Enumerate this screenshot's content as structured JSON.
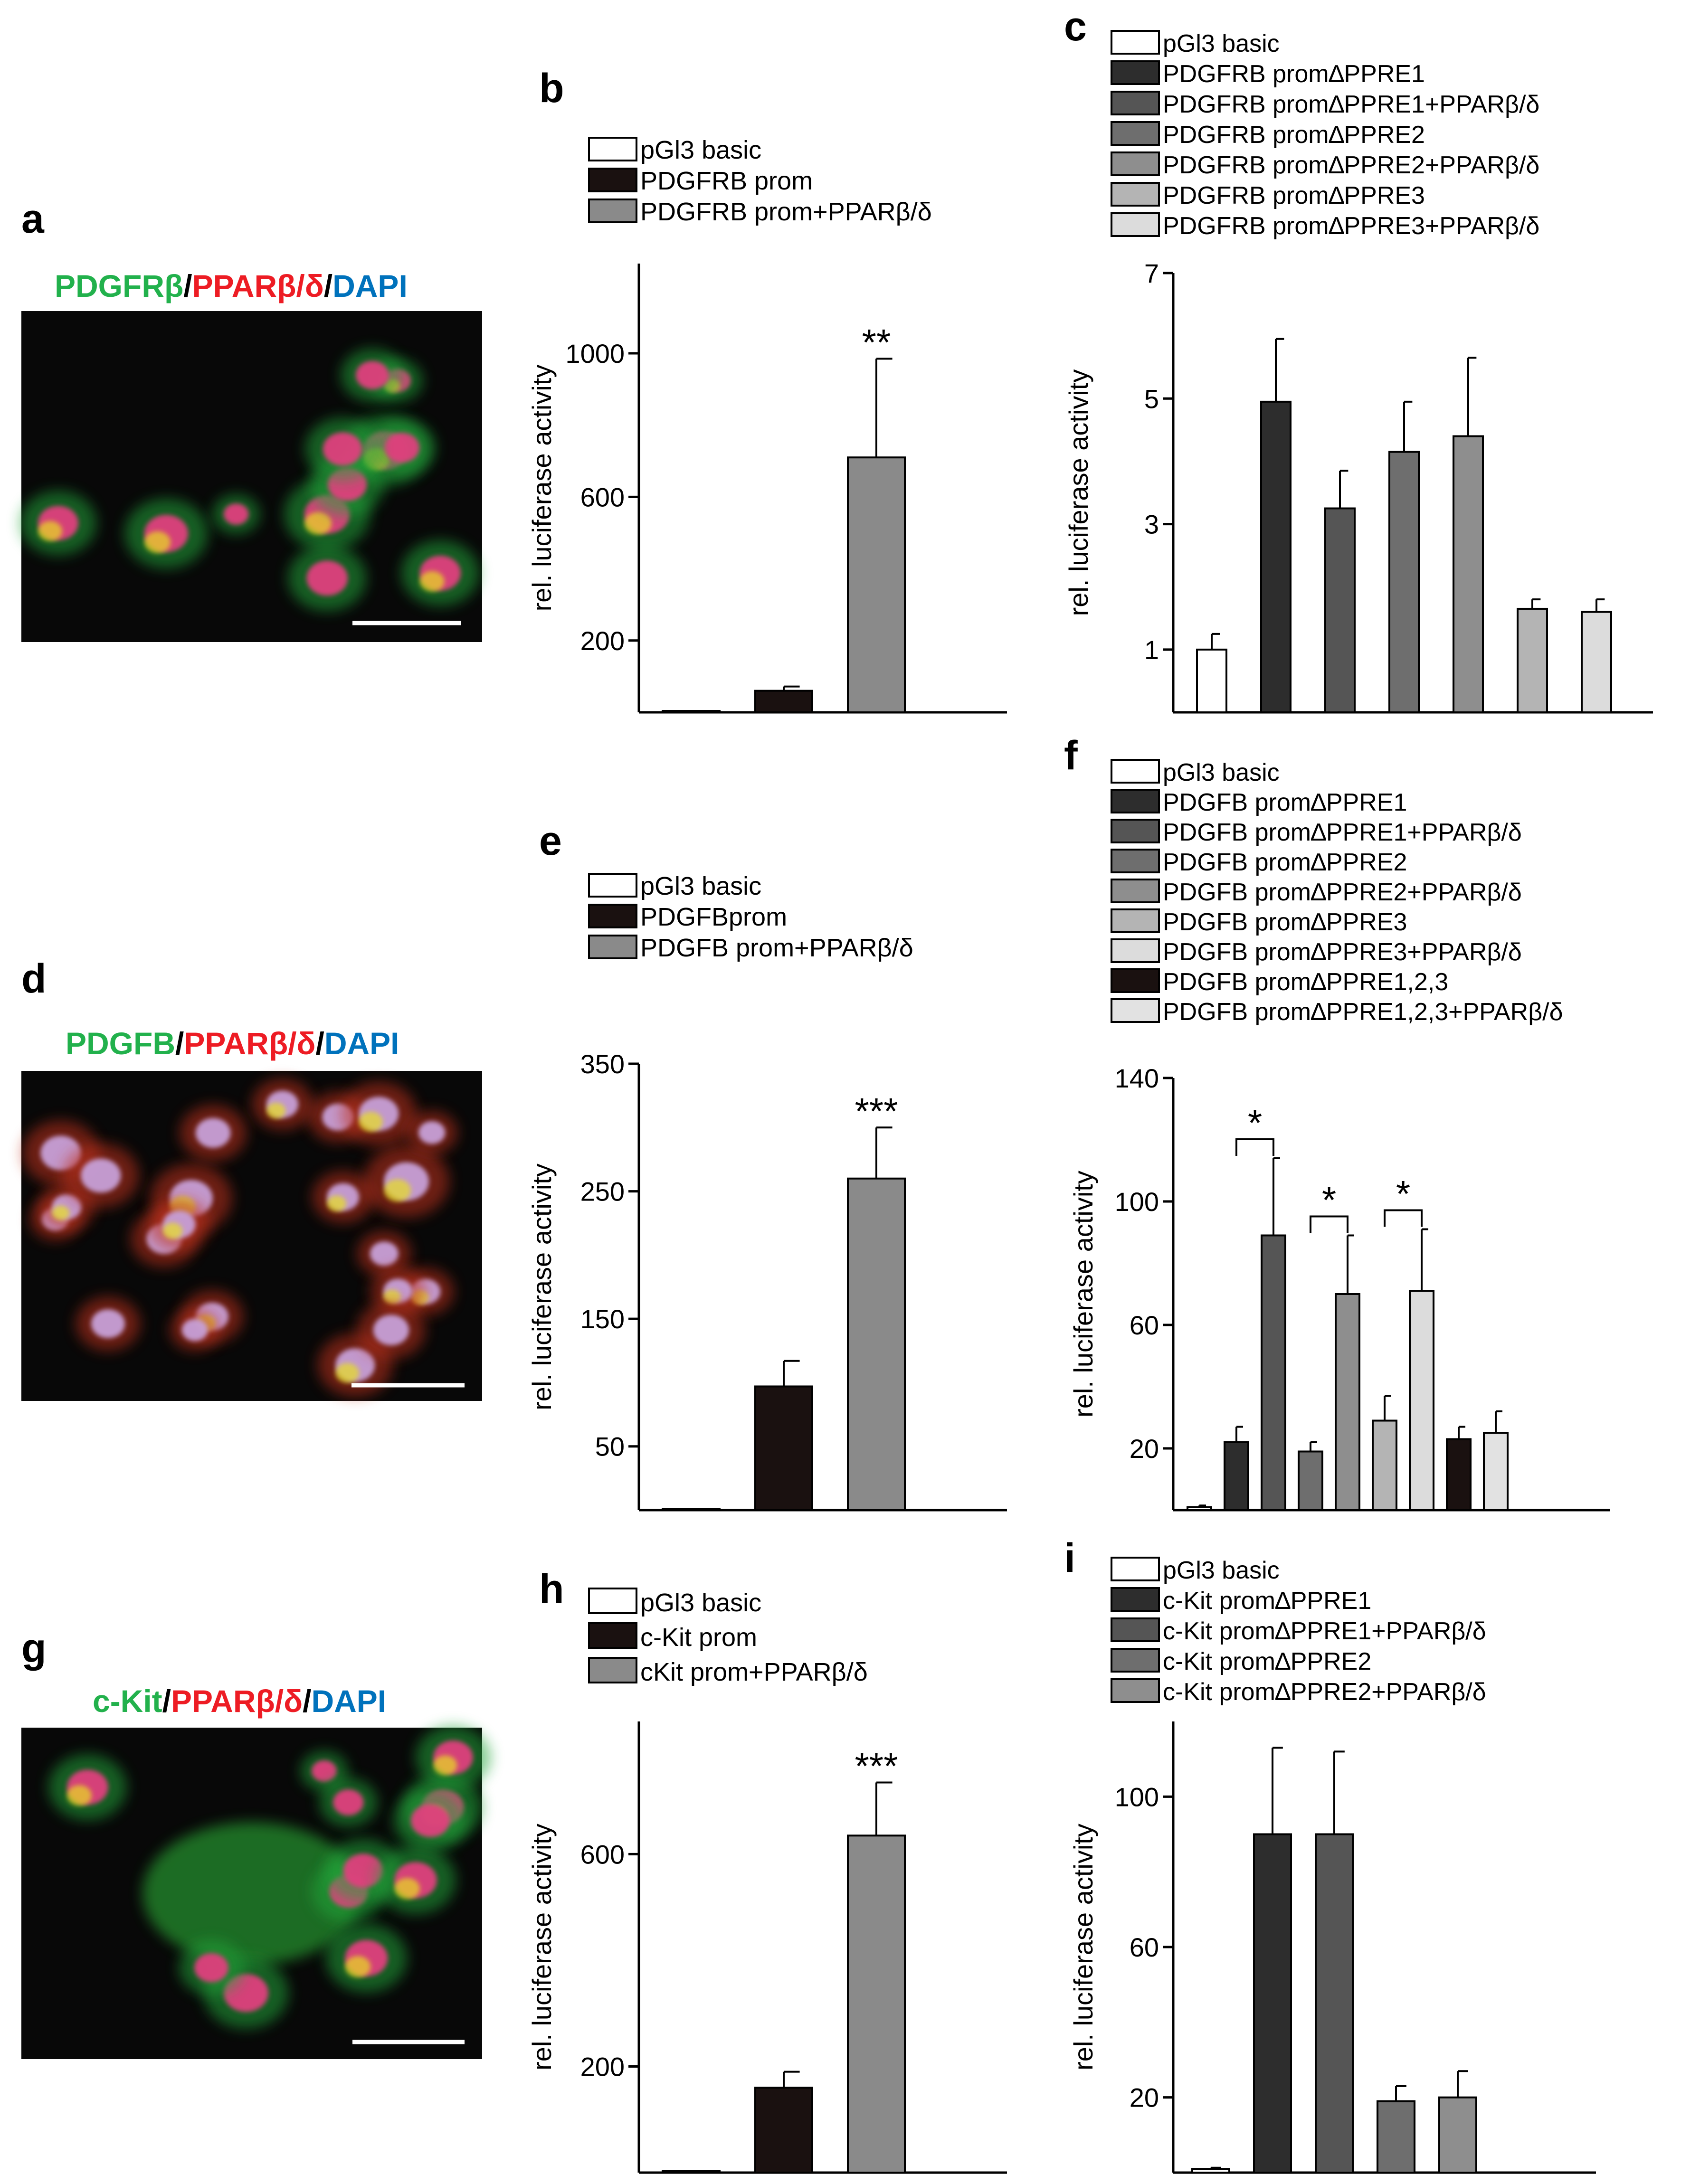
{
  "panel_letters": [
    "a",
    "b",
    "c",
    "d",
    "e",
    "f",
    "g",
    "h",
    "i"
  ],
  "micro": [
    {
      "letter": "a",
      "title": [
        [
          "PDGFRβ",
          "#22b14c"
        ],
        [
          "/",
          "#000000"
        ],
        [
          "PPARβ/δ",
          "#ed1c24"
        ],
        [
          "/",
          "#000000"
        ],
        [
          "DAPI",
          "#0072bc"
        ]
      ]
    },
    {
      "letter": "d",
      "title": [
        [
          "PDGFB",
          "#22b14c"
        ],
        [
          "/",
          "#000000"
        ],
        [
          "PPARβ/δ",
          "#ed1c24"
        ],
        [
          "/",
          "#000000"
        ],
        [
          "DAPI",
          "#0072bc"
        ]
      ]
    },
    {
      "letter": "g",
      "title": [
        [
          "c-Kit",
          "#22b14c"
        ],
        [
          "/",
          "#000000"
        ],
        [
          "PPARβ/δ",
          "#ed1c24"
        ],
        [
          "/",
          "#000000"
        ],
        [
          "DAPI",
          "#0072bc"
        ]
      ]
    }
  ],
  "chart_data": [
    {
      "panel": "b",
      "type": "bar",
      "ylabel": "rel. luciferase activity",
      "ylim": [
        0,
        1250
      ],
      "yticks": [
        200,
        600,
        1000
      ],
      "series": [
        {
          "name": "pGl3 basic",
          "value": 1,
          "error": 0,
          "color": "#ffffff"
        },
        {
          "name": "PDGFRB prom",
          "value": 60,
          "error": 12,
          "color": "#1a1110"
        },
        {
          "name": "PDGFRB prom+PPARβ/δ",
          "value": 710,
          "error": 275,
          "color": "#8a8a8a"
        }
      ],
      "annotations": [
        {
          "bar": 2,
          "text": "**"
        }
      ]
    },
    {
      "panel": "c",
      "type": "bar",
      "ylabel": "rel. luciferase activity",
      "ylim": [
        0,
        7
      ],
      "yticks": [
        1,
        3,
        5,
        7
      ],
      "series": [
        {
          "name": "pGl3 basic",
          "value": 1.0,
          "error": 0.25,
          "color": "#ffffff"
        },
        {
          "name": "PDGFRB prom∆PPRE1",
          "value": 4.95,
          "error": 1.0,
          "color": "#2d2d2d"
        },
        {
          "name": "PDGFRB prom∆PPRE1+PPARβ/δ",
          "value": 3.25,
          "error": 0.6,
          "color": "#555555"
        },
        {
          "name": "PDGFRB prom∆PPRE2",
          "value": 4.15,
          "error": 0.8,
          "color": "#6e6e6e"
        },
        {
          "name": "PDGFRB prom∆PPRE2+PPARβ/δ",
          "value": 4.4,
          "error": 1.25,
          "color": "#8e8e8e"
        },
        {
          "name": "PDGFRB prom∆PPRE3",
          "value": 1.65,
          "error": 0.15,
          "color": "#b4b4b4"
        },
        {
          "name": "PDGFRB prom∆PPRE3+PPARβ/δ",
          "value": 1.6,
          "error": 0.2,
          "color": "#dcdcdc"
        }
      ],
      "annotations": []
    },
    {
      "panel": "e",
      "type": "bar",
      "ylabel": "rel. luciferase activity",
      "ylim": [
        0,
        350
      ],
      "yticks": [
        50,
        150,
        250,
        350
      ],
      "series": [
        {
          "name": "pGl3 basic",
          "value": 1,
          "error": 0,
          "color": "#ffffff"
        },
        {
          "name": "PDGFBprom",
          "value": 97,
          "error": 20,
          "color": "#1a1110"
        },
        {
          "name": "PDGFB prom+PPARβ/δ",
          "value": 260,
          "error": 40,
          "color": "#8a8a8a"
        }
      ],
      "annotations": [
        {
          "bar": 2,
          "text": "***"
        }
      ]
    },
    {
      "panel": "f",
      "type": "bar",
      "ylabel": "rel. luciferase activity",
      "ylim": [
        0,
        140
      ],
      "yticks": [
        20,
        60,
        100,
        140
      ],
      "series": [
        {
          "name": "pGl3 basic",
          "value": 1,
          "error": 0.5,
          "color": "#ffffff"
        },
        {
          "name": "PDGFB prom∆PPRE1",
          "value": 22,
          "error": 5,
          "color": "#2d2d2d"
        },
        {
          "name": "PDGFB prom∆PPRE1+PPARβ/δ",
          "value": 89,
          "error": 25,
          "color": "#555555"
        },
        {
          "name": "PDGFB prom∆PPRE2",
          "value": 19,
          "error": 3,
          "color": "#6e6e6e"
        },
        {
          "name": "PDGFB prom∆PPRE2+PPARβ/δ",
          "value": 70,
          "error": 19,
          "color": "#8e8e8e"
        },
        {
          "name": "PDGFB prom∆PPRE3",
          "value": 29,
          "error": 8,
          "color": "#b4b4b4"
        },
        {
          "name": "PDGFB prom∆PPRE3+PPARβ/δ",
          "value": 71,
          "error": 20,
          "color": "#dcdcdc"
        },
        {
          "name": "PDGFB prom∆PPRE1,2,3",
          "value": 23,
          "error": 4,
          "color": "#1a1110"
        },
        {
          "name": "PDGFB prom∆PPRE1,2,3+PPARβ/δ",
          "value": 25,
          "error": 7,
          "color": "#e2e2e2"
        }
      ],
      "annotations": [
        {
          "pair": [
            1,
            2
          ],
          "text": "*"
        },
        {
          "pair": [
            3,
            4
          ],
          "text": "*"
        },
        {
          "pair": [
            5,
            6
          ],
          "text": "*"
        }
      ]
    },
    {
      "panel": "h",
      "type": "bar",
      "ylabel": "rel. luciferase activity",
      "ylim": [
        0,
        850
      ],
      "yticks": [
        200,
        600
      ],
      "series": [
        {
          "name": "pGl3 basic",
          "value": 1,
          "error": 0,
          "color": "#ffffff"
        },
        {
          "name": "c-Kit prom",
          "value": 160,
          "error": 30,
          "color": "#1a1110"
        },
        {
          "name": "cKit prom+PPARβ/δ",
          "value": 635,
          "error": 100,
          "color": "#8a8a8a"
        }
      ],
      "annotations": [
        {
          "bar": 2,
          "text": "***"
        }
      ]
    },
    {
      "panel": "i",
      "type": "bar",
      "ylabel": "rel. luciferase activity",
      "ylim": [
        0,
        120
      ],
      "yticks": [
        20,
        60,
        100
      ],
      "series": [
        {
          "name": "pGl3 basic",
          "value": 1,
          "error": 0.3,
          "color": "#ffffff"
        },
        {
          "name": "c-Kit prom∆PPRE1",
          "value": 90,
          "error": 23,
          "color": "#2d2d2d"
        },
        {
          "name": "c-Kit prom∆PPRE1+PPARβ/δ",
          "value": 90,
          "error": 22,
          "color": "#555555"
        },
        {
          "name": "c-Kit prom∆PPRE2",
          "value": 19,
          "error": 4,
          "color": "#6e6e6e"
        },
        {
          "name": "c-Kit prom∆PPRE2+PPARβ/δ",
          "value": 20,
          "error": 7,
          "color": "#8e8e8e"
        }
      ],
      "annotations": []
    }
  ]
}
